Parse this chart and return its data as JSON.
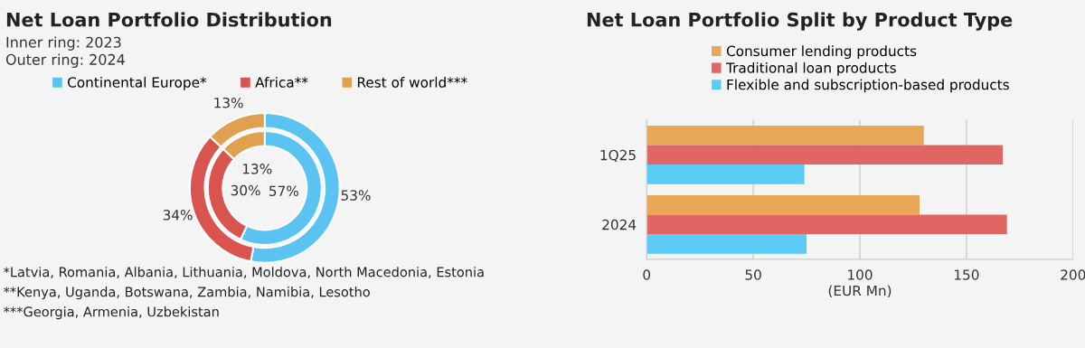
{
  "chart_data": [
    {
      "type": "donut",
      "title": "Net Loan Portfolio Distribution",
      "subtitle": "Inner ring: 2023\nOuter ring: 2024",
      "categories": [
        "Continental Europe*",
        "Africa**",
        "Rest of world***"
      ],
      "colors": [
        "#5bc3f2",
        "#d9534f",
        "#e0a050"
      ],
      "series": [
        {
          "values": [
            57,
            30,
            13
          ],
          "value_labels": [
            "57%",
            "30%",
            "13%"
          ]
        },
        {
          "values": [
            53,
            34,
            13
          ],
          "value_labels": [
            "53%",
            "34%",
            "13%"
          ]
        }
      ],
      "legend": "top",
      "annotations": [
        "*Latvia, Romania, Albania, Lithuania, Moldova, North Macedonia, Estonia",
        "**Kenya, Uganda, Botswana, Zambia, Namibia, Lesotho",
        "***Georgia, Armenia, Uzbekistan"
      ]
    },
    {
      "type": "bar",
      "title": "Net Loan Portfolio Split by Product Type",
      "orientation": "horizontal",
      "categories": [
        "1Q25",
        "2024"
      ],
      "series": [
        {
          "name": "Consumer lending products",
          "color": "#e8a857",
          "values": [
            130,
            128
          ]
        },
        {
          "name": "Traditional loan products",
          "color": "#e06663",
          "values": [
            167,
            169
          ]
        },
        {
          "name": "Flexible and subscription-based products",
          "color": "#5ccbf5",
          "values": [
            74,
            75
          ]
        }
      ],
      "xlim": [
        0,
        200
      ],
      "xticks": [
        0,
        50,
        100,
        150,
        200
      ],
      "xlabel": "(EUR Mn)",
      "grid": "x",
      "legend": "top"
    }
  ]
}
